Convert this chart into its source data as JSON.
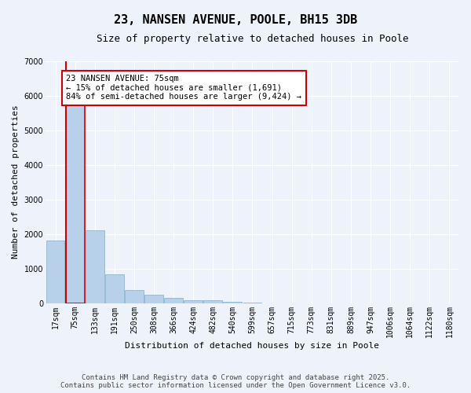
{
  "title": "23, NANSEN AVENUE, POOLE, BH15 3DB",
  "subtitle": "Size of property relative to detached houses in Poole",
  "xlabel": "Distribution of detached houses by size in Poole",
  "ylabel": "Number of detached properties",
  "categories": [
    "17sqm",
    "75sqm",
    "133sqm",
    "191sqm",
    "250sqm",
    "308sqm",
    "366sqm",
    "424sqm",
    "482sqm",
    "540sqm",
    "599sqm",
    "657sqm",
    "715sqm",
    "773sqm",
    "831sqm",
    "889sqm",
    "947sqm",
    "1006sqm",
    "1064sqm",
    "1122sqm",
    "1180sqm"
  ],
  "values": [
    1800,
    5800,
    2100,
    830,
    380,
    230,
    140,
    90,
    90,
    40,
    10,
    0,
    0,
    0,
    0,
    0,
    0,
    0,
    0,
    0,
    0
  ],
  "highlight_index": 1,
  "bar_color": "#b8d0ea",
  "bar_edge_color": "#7aafd4",
  "highlight_bar_edge_color": "#cc0000",
  "highlight_line_color": "#cc0000",
  "ylim": [
    0,
    7000
  ],
  "yticks": [
    0,
    1000,
    2000,
    3000,
    4000,
    5000,
    6000,
    7000
  ],
  "background_color": "#eef2fa",
  "grid_color": "#ffffff",
  "annotation_title": "23 NANSEN AVENUE: 75sqm",
  "annotation_line1": "← 15% of detached houses are smaller (1,691)",
  "annotation_line2": "84% of semi-detached houses are larger (9,424) →",
  "annotation_box_color": "#ffffff",
  "annotation_border_color": "#cc0000",
  "footer_line1": "Contains HM Land Registry data © Crown copyright and database right 2025.",
  "footer_line2": "Contains public sector information licensed under the Open Government Licence v3.0.",
  "title_fontsize": 11,
  "subtitle_fontsize": 9,
  "axis_label_fontsize": 8,
  "tick_fontsize": 7,
  "annotation_fontsize": 7.5,
  "footer_fontsize": 6.5
}
